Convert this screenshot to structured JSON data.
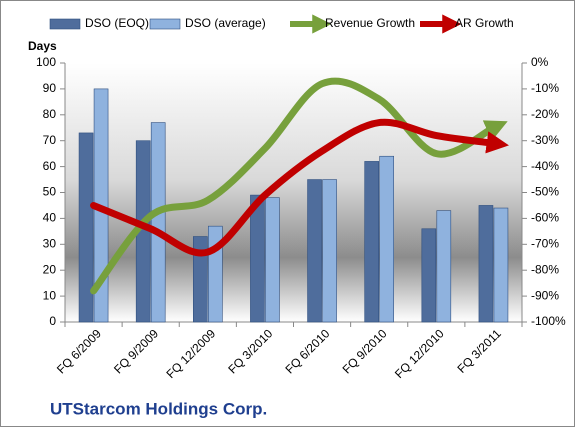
{
  "chart_data": {
    "type": "bar",
    "title": "UTStarcom Holdings Corp.",
    "y_label": "Days",
    "categories": [
      "FQ 6/2009",
      "FQ 9/2009",
      "FQ 12/2009",
      "FQ 3/2010",
      "FQ 6/2010",
      "FQ 9/2010",
      "FQ 12/2010",
      "FQ 3/2011"
    ],
    "series": [
      {
        "name": "DSO (EOQ)",
        "type": "bar",
        "color": "#4f6d9c",
        "values": [
          73,
          70,
          33,
          49,
          55,
          62,
          36,
          45
        ]
      },
      {
        "name": "DSO (average)",
        "type": "bar",
        "color": "#8fb2de",
        "values": [
          90,
          77,
          37,
          48,
          55,
          64,
          43,
          44
        ]
      },
      {
        "name": "Revenue Growth",
        "type": "line",
        "axis": "y2",
        "color": "#77a03c",
        "values": [
          -88,
          -59,
          -53,
          -33,
          -8,
          -14,
          -35,
          -25
        ]
      },
      {
        "name": "AR Growth",
        "type": "line",
        "axis": "y2",
        "color": "#c00000",
        "values": [
          -55,
          -64,
          -73,
          -51,
          -34,
          -23,
          -28,
          -31
        ]
      }
    ],
    "ylim": [
      0,
      100
    ],
    "yticks": [
      0,
      10,
      20,
      30,
      40,
      50,
      60,
      70,
      80,
      90,
      100
    ],
    "y2lim": [
      -100,
      0
    ],
    "y2ticks": [
      {
        "value": 0,
        "label": "0%"
      },
      {
        "value": -10,
        "label": "-10%"
      },
      {
        "value": -20,
        "label": "-20%"
      },
      {
        "value": -30,
        "label": "-30%"
      },
      {
        "value": -40,
        "label": "-40%"
      },
      {
        "value": -50,
        "label": "-50%"
      },
      {
        "value": -60,
        "label": "-60%"
      },
      {
        "value": -70,
        "label": "-70%"
      },
      {
        "value": -80,
        "label": "-80%"
      },
      {
        "value": -90,
        "label": "-90%"
      },
      {
        "value": -100,
        "label": "-100%"
      }
    ],
    "grid": false,
    "legend": "top"
  }
}
